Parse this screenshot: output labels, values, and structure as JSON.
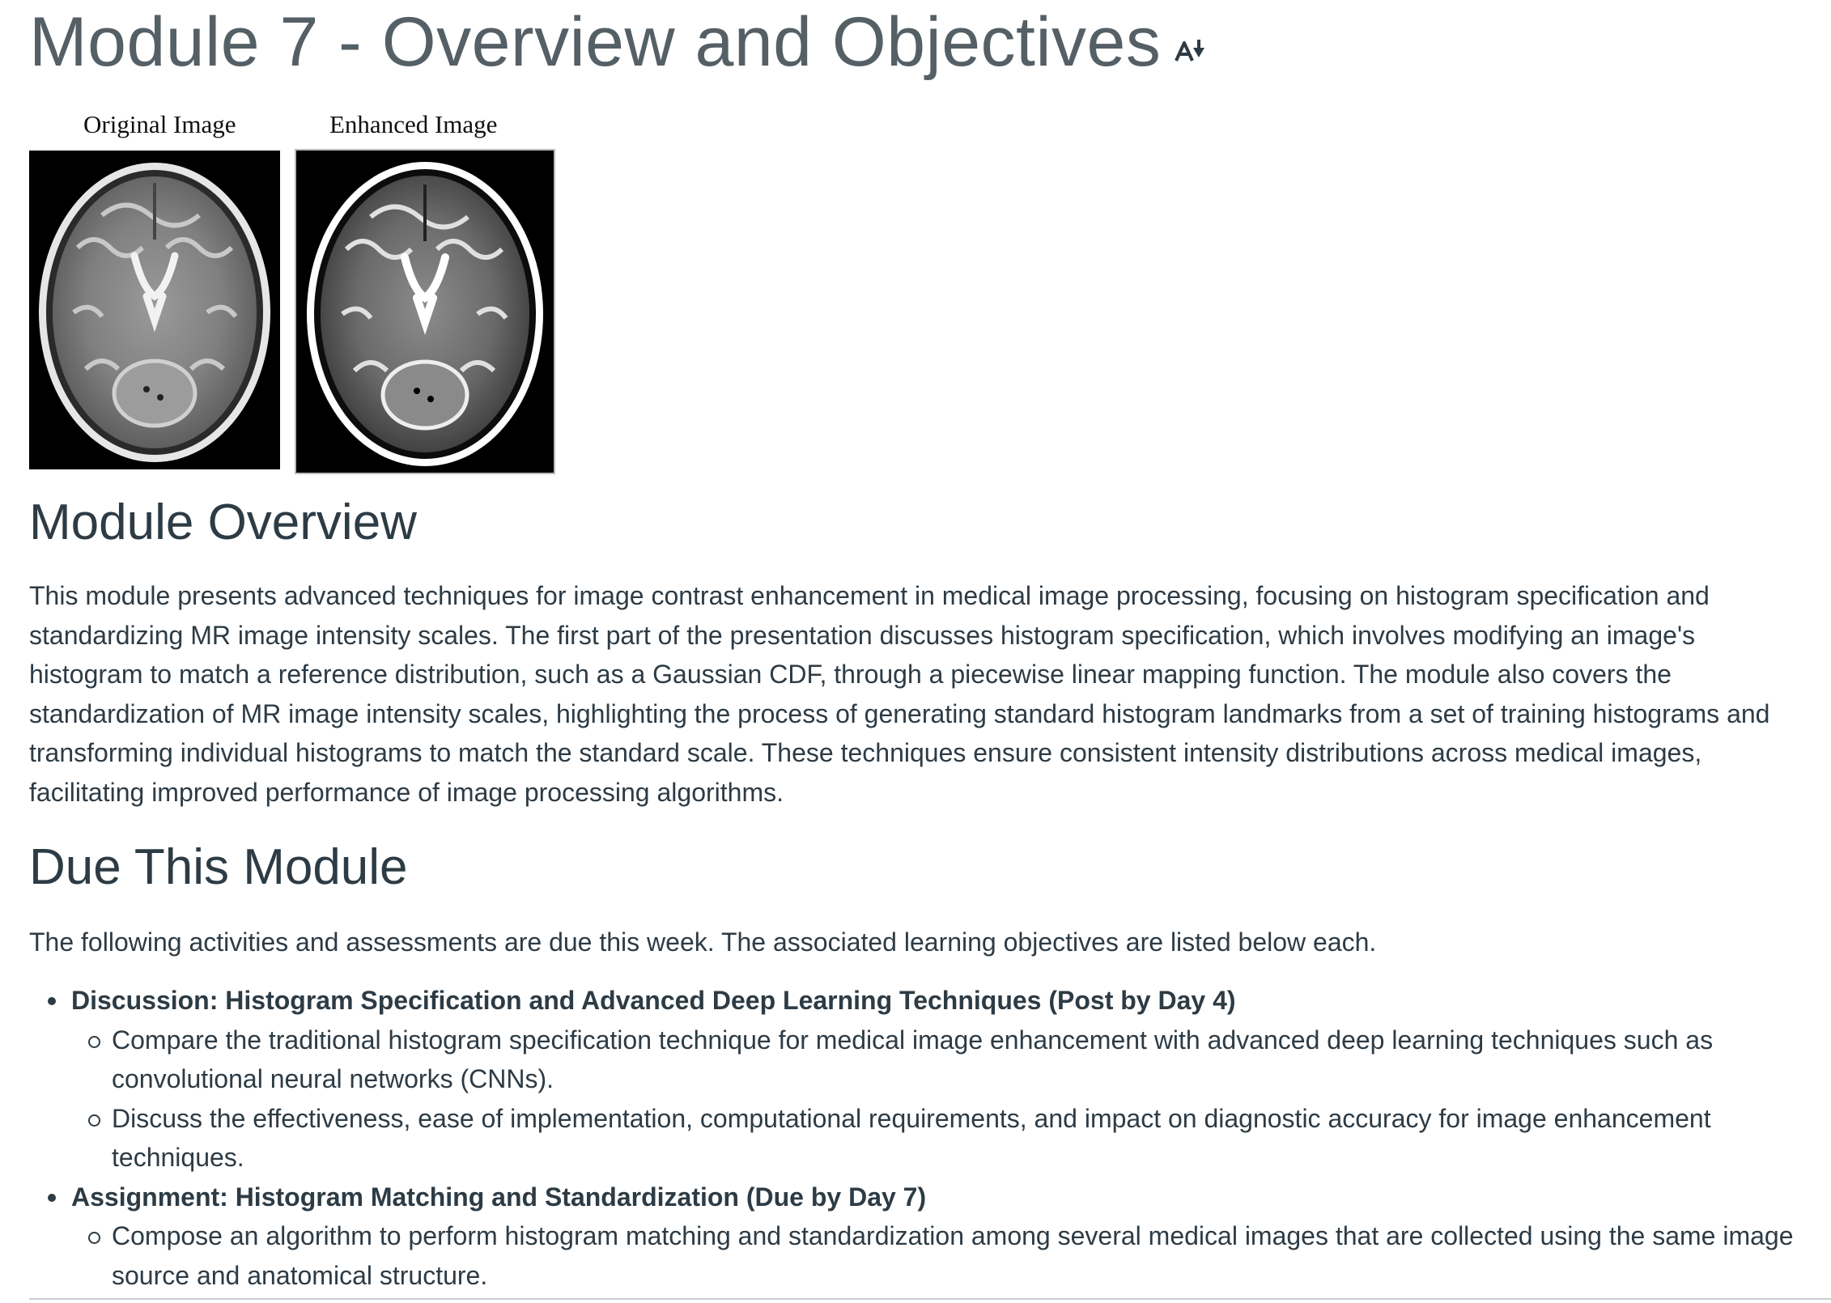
{
  "page": {
    "title": "Module 7 - Overview and Objectives"
  },
  "figure": {
    "left_caption": "Original Image",
    "right_caption": "Enhanced Image"
  },
  "overview": {
    "heading": "Module Overview",
    "paragraph": "This module presents advanced techniques for image contrast enhancement in medical image processing, focusing on histogram specification and standardizing MR image intensity scales. The first part of the presentation discusses histogram specification, which involves modifying an image's histogram to match a reference distribution, such as a Gaussian CDF, through a piecewise linear mapping function. The module also covers the standardization of MR image intensity scales, highlighting the process of generating standard histogram landmarks from a set of training histograms and transforming individual histograms to match the standard scale. These techniques ensure consistent intensity distributions across medical images, facilitating improved performance of image processing algorithms."
  },
  "due": {
    "heading": "Due This Module",
    "intro": "The following activities and assessments are due this week. The associated learning objectives are listed below each.",
    "items": [
      {
        "title": "Discussion: Histogram Specification and Advanced Deep Learning Techniques (Post by Day 4)",
        "objectives": [
          "Compare the traditional histogram specification technique for medical image enhancement with advanced deep learning techniques such as convolutional neural networks (CNNs).",
          "Discuss the effectiveness, ease of implementation, computational requirements, and impact on diagnostic accuracy for image enhancement techniques."
        ]
      },
      {
        "title": "Assignment: Histogram Matching and Standardization (Due by Day 7)",
        "objectives": [
          "Compose an algorithm to perform histogram matching and standardization among several medical images that are collected using the same image source and anatomical structure."
        ]
      }
    ]
  },
  "icons": {
    "immersive_reader": "immersive-reader-icon"
  }
}
